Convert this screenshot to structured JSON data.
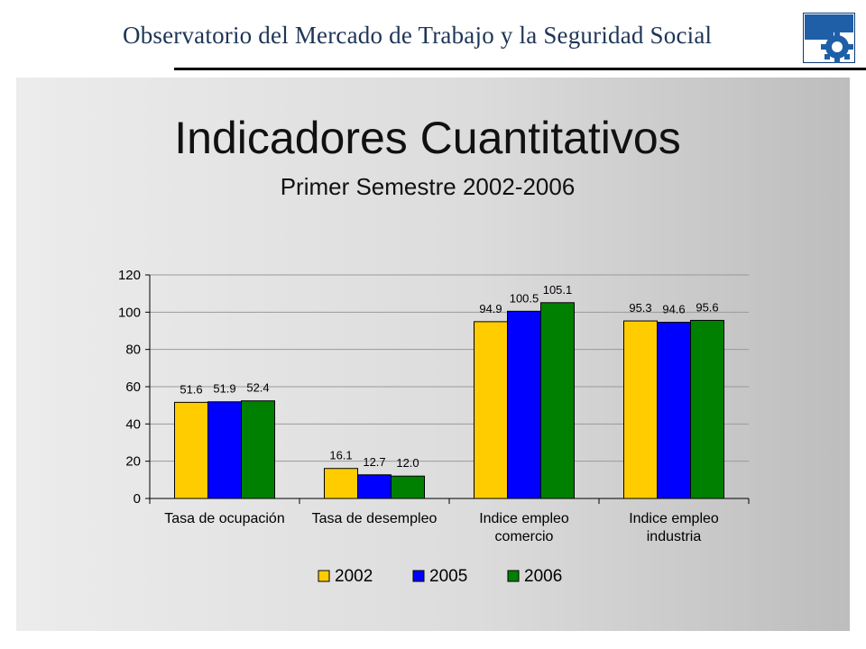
{
  "header": {
    "title": "Observatorio del Mercado de Trabajo y la Seguridad Social",
    "logo_icon": "gear-icon",
    "colors": {
      "logo_blue": "#1f5fa8",
      "logo_dark": "#0a3a75"
    }
  },
  "slide": {
    "title": "Indicadores Cuantitativos",
    "subtitle": "Primer Semestre 2002-2006"
  },
  "chart_data": {
    "type": "bar",
    "categories": [
      [
        "Tasa de ocupación"
      ],
      [
        "Tasa de desempleo"
      ],
      [
        "Indice empleo",
        "comercio"
      ],
      [
        "Indice empleo",
        "industria"
      ]
    ],
    "series": [
      {
        "name": "2002",
        "color": "#ffcc00",
        "values": [
          51.6,
          16.1,
          94.9,
          95.3
        ],
        "labels": [
          "51.6",
          "16.1",
          "94.9",
          "95.3"
        ]
      },
      {
        "name": "2005",
        "color": "#0000ff",
        "values": [
          51.9,
          12.7,
          100.5,
          94.6
        ],
        "labels": [
          "51.9",
          "12.7",
          "100.5",
          "94.6"
        ]
      },
      {
        "name": "2006",
        "color": "#008000",
        "values": [
          52.4,
          12.0,
          105.1,
          95.6
        ],
        "labels": [
          "52.4",
          "12.0",
          "105.1",
          "95.6"
        ]
      }
    ],
    "ylim": [
      0,
      120
    ],
    "yticks": [
      "0",
      "20",
      "40",
      "60",
      "80",
      "100",
      "120"
    ],
    "grid": true,
    "legend": "bottom"
  }
}
